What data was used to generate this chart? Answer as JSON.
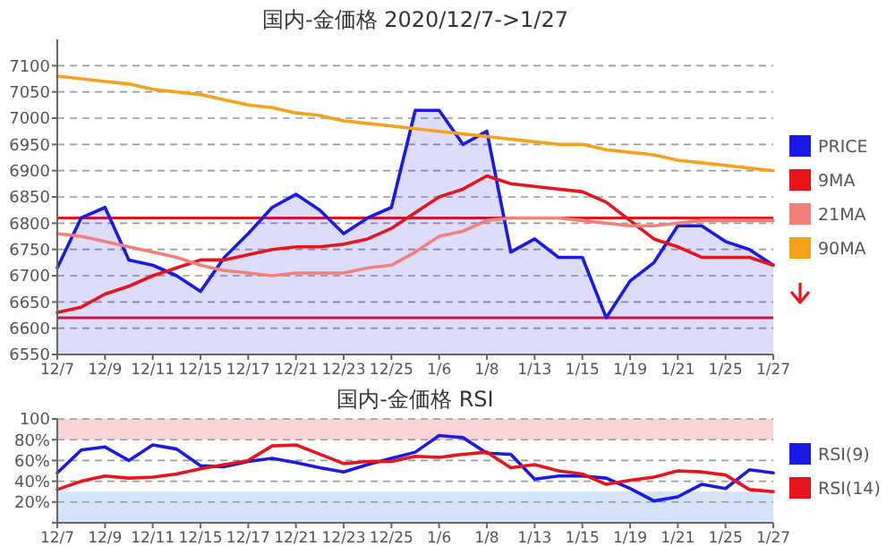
{
  "chart_data": [
    {
      "type": "line",
      "title": "国内-金価格 2020/12/7->1/27",
      "categories": [
        "12/7",
        null,
        "12/9",
        null,
        "12/11",
        null,
        "12/15",
        null,
        "12/17",
        null,
        "12/21",
        null,
        "12/23",
        null,
        "12/25",
        null,
        "1/6",
        null,
        "1/8",
        null,
        "1/13",
        null,
        "1/15",
        null,
        "1/19",
        null,
        "1/21",
        null,
        "1/25",
        null,
        "1/27"
      ],
      "series": [
        {
          "name": "PRICE",
          "type": "area",
          "color": "#1a1ae6",
          "values": [
            6715,
            6810,
            6830,
            6730,
            6720,
            6700,
            6670,
            6735,
            6780,
            6830,
            6855,
            6825,
            6780,
            6810,
            6830,
            7015,
            7015,
            6950,
            6975,
            6745,
            6770,
            6735,
            6735,
            6620,
            6690,
            6725,
            6795,
            6795,
            6765,
            6750,
            6720
          ]
        },
        {
          "name": "9MA",
          "color": "#e8141a",
          "values": [
            6630,
            6640,
            6665,
            6680,
            6700,
            6715,
            6730,
            6730,
            6740,
            6750,
            6755,
            6755,
            6760,
            6770,
            6790,
            6820,
            6850,
            6865,
            6890,
            6875,
            6870,
            6865,
            6860,
            6840,
            6805,
            6770,
            6755,
            6735,
            6735,
            6735,
            6720
          ]
        },
        {
          "name": "21MA",
          "color": "#f08078",
          "values": [
            6780,
            6775,
            6765,
            6755,
            6745,
            6735,
            6720,
            6710,
            6705,
            6700,
            6705,
            6705,
            6705,
            6715,
            6720,
            6745,
            6775,
            6785,
            6805,
            6810,
            6810,
            6810,
            6805,
            6800,
            6795,
            6795,
            6800,
            6805,
            6805,
            6805,
            6805
          ]
        },
        {
          "name": "90MA",
          "color": "#f5a21a",
          "values": [
            7080,
            7075,
            7070,
            7065,
            7055,
            7050,
            7045,
            7035,
            7025,
            7020,
            7010,
            7005,
            6995,
            6990,
            6985,
            6980,
            6975,
            6970,
            6965,
            6960,
            6955,
            6950,
            6950,
            6940,
            6935,
            6930,
            6920,
            6915,
            6910,
            6905,
            6900
          ]
        }
      ],
      "ylim": [
        6550,
        7150
      ],
      "yticks": [
        6550,
        6600,
        6650,
        6700,
        6750,
        6800,
        6850,
        6900,
        6950,
        7000,
        7050,
        7100
      ],
      "grid": "y",
      "legend": "right",
      "ref_lines": [
        {
          "axis": "y",
          "value": 6810,
          "color": "#e8141a"
        },
        {
          "axis": "y",
          "value": 6620,
          "color": "#e8141a"
        }
      ]
    },
    {
      "type": "line",
      "title": "国内-金価格 RSI",
      "categories": [
        "12/7",
        null,
        "12/9",
        null,
        "12/11",
        null,
        "12/15",
        null,
        "12/17",
        null,
        "12/21",
        null,
        "12/23",
        null,
        "12/25",
        null,
        "1/6",
        null,
        "1/8",
        null,
        "1/13",
        null,
        "1/15",
        null,
        "1/19",
        null,
        "1/21",
        null,
        "1/25",
        null,
        "1/27"
      ],
      "series": [
        {
          "name": "RSI(9)",
          "color": "#1a1ae6",
          "values": [
            48,
            70,
            73,
            60,
            75,
            71,
            55,
            54,
            59,
            62,
            58,
            53,
            49,
            56,
            62,
            68,
            84,
            82,
            67,
            66,
            42,
            45,
            45,
            43,
            33,
            21,
            25,
            37,
            33,
            51,
            48
          ]
        },
        {
          "name": "RSI(14)",
          "color": "#e8141a",
          "values": [
            32,
            40,
            45,
            43,
            44,
            47,
            52,
            56,
            60,
            74,
            75,
            66,
            57,
            59,
            59,
            64,
            63,
            66,
            68,
            53,
            56,
            50,
            47,
            37,
            41,
            44,
            50,
            49,
            46,
            32,
            30
          ]
        }
      ],
      "ylim": [
        0,
        100
      ],
      "yticks": [
        {
          "value": 0,
          "label": null
        },
        {
          "value": 20,
          "label": "20%"
        },
        {
          "value": 40,
          "label": "40%"
        },
        {
          "value": 60,
          "label": "60%"
        },
        {
          "value": 80,
          "label": "80%"
        },
        100
      ],
      "grid": "y",
      "legend": "right",
      "bands": [
        {
          "axis": "y",
          "from": 80,
          "to": 100,
          "color": "#f9d3d6"
        },
        {
          "axis": "y",
          "from": 0,
          "to": 30,
          "color": "#d3e3f8"
        }
      ]
    }
  ]
}
